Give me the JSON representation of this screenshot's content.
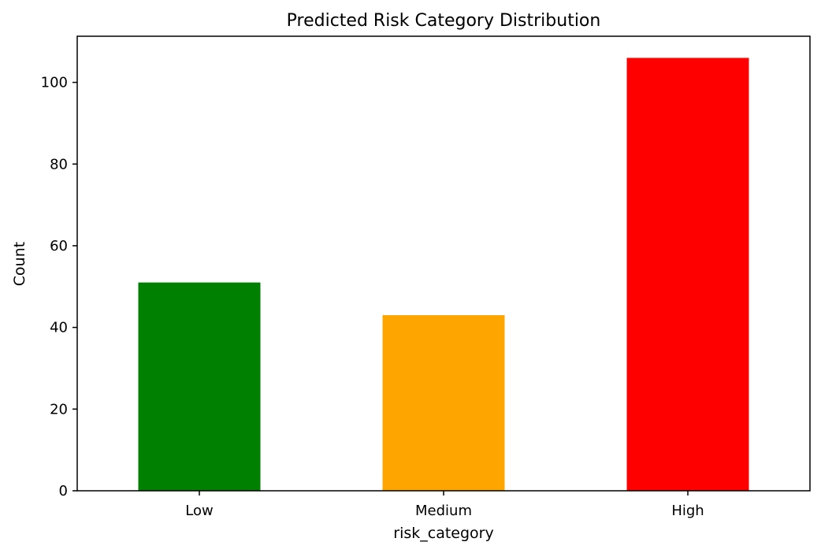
{
  "chart_data": {
    "type": "bar",
    "title": "Predicted Risk Category Distribution",
    "xlabel": "risk_category",
    "ylabel": "Count",
    "categories": [
      "Low",
      "Medium",
      "High"
    ],
    "values": [
      51,
      43,
      106
    ],
    "colors": [
      "#008000",
      "#ffa500",
      "#ff0000"
    ],
    "ylim": [
      0,
      111.3
    ],
    "yticks": [
      0,
      20,
      40,
      60,
      80,
      100
    ],
    "grid": false,
    "legend": "none"
  }
}
